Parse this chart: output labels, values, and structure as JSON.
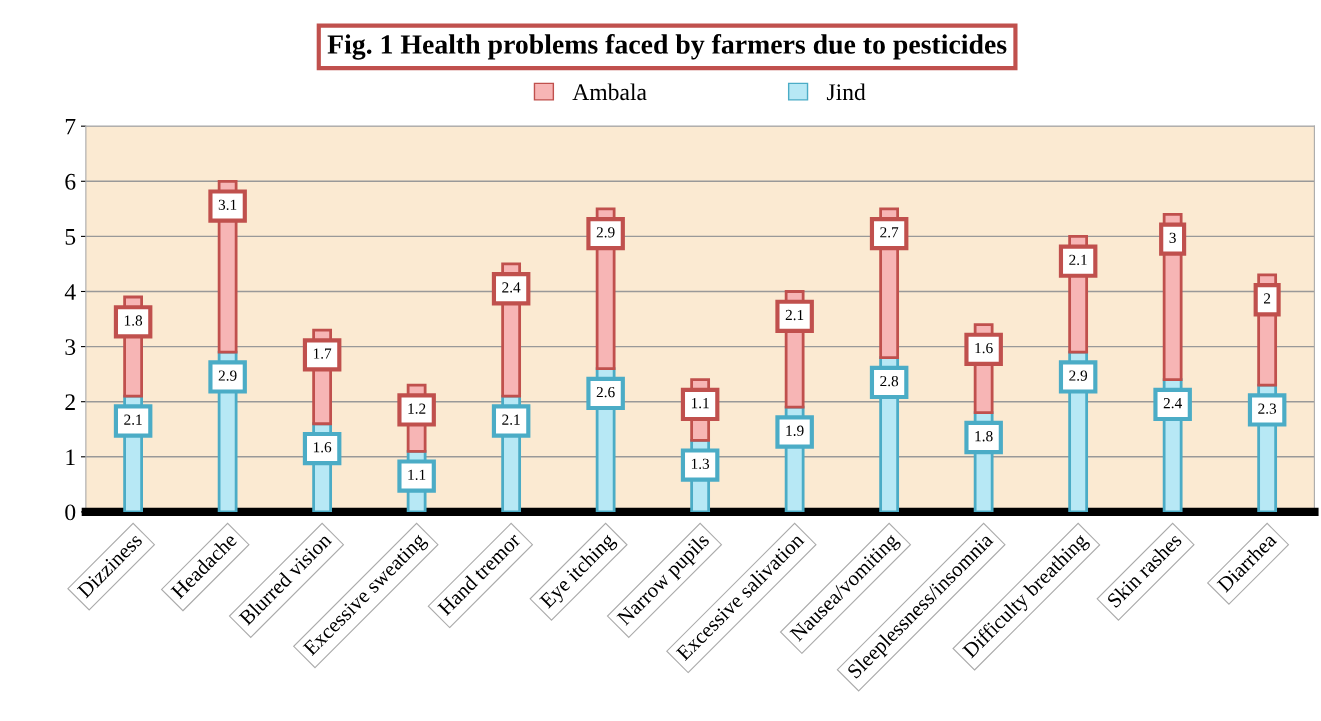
{
  "chart_data": {
    "type": "bar",
    "title": "Fig. 1 Health problems faced by farmers due to pesticides",
    "categories": [
      "Dizziness",
      "Headache",
      "Blurred vision",
      "Excessive sweating",
      "Hand tremor",
      "Eye itching",
      "Narrow pupils",
      "Excessive salivation",
      "Nausea/vomiting",
      "Sleeplessness/insomnia",
      "Difficulty breathing",
      "Skin rashes",
      "Diarrhea"
    ],
    "stacked": true,
    "series": [
      {
        "name": "Jind",
        "color": "#b7e8f5",
        "values": [
          2.1,
          2.9,
          1.6,
          1.1,
          2.1,
          2.6,
          1.3,
          1.9,
          2.8,
          1.8,
          2.9,
          2.4,
          2.3
        ]
      },
      {
        "name": "Ambala",
        "color": "#f7b5b5",
        "values": [
          1.8,
          3.1,
          1.7,
          1.2,
          2.4,
          2.9,
          1.1,
          2.1,
          2.7,
          1.6,
          2.1,
          3,
          2
        ]
      }
    ],
    "ylim": [
      0,
      7
    ],
    "yticks": [
      0,
      1,
      2,
      3,
      4,
      5,
      6,
      7
    ],
    "grid": "y",
    "legend": "top",
    "data_labels": true
  }
}
